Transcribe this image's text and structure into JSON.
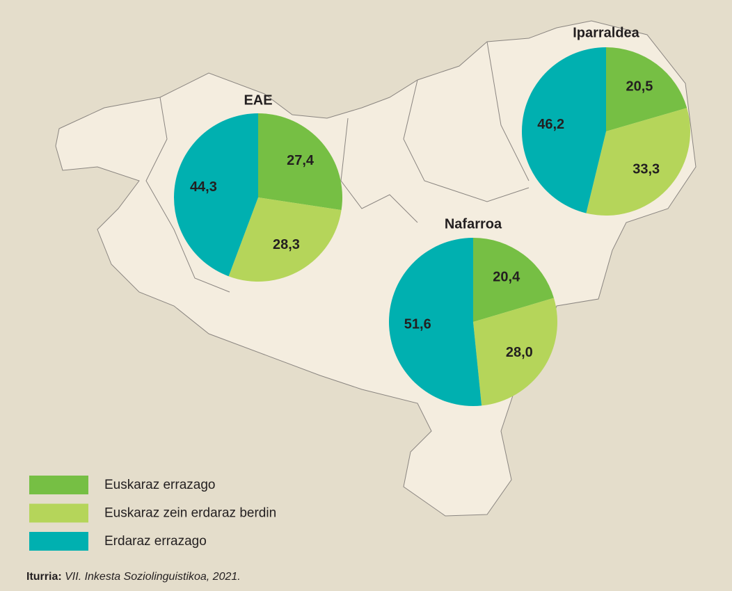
{
  "chart_data": [
    {
      "type": "pie",
      "title": "EAE",
      "categories": [
        "Euskaraz errazago",
        "Euskaraz zein erdaraz berdin",
        "Erdaraz errazago"
      ],
      "values": [
        27.4,
        28.3,
        44.3
      ],
      "value_labels": [
        "27,4",
        "28,3",
        "44,3"
      ],
      "colors": [
        "#76bf44",
        "#b5d55a",
        "#00b0b0"
      ]
    },
    {
      "type": "pie",
      "title": "Iparraldea",
      "categories": [
        "Euskaraz errazago",
        "Euskaraz zein erdaraz berdin",
        "Erdaraz errazago"
      ],
      "values": [
        20.5,
        33.3,
        46.2
      ],
      "value_labels": [
        "20,5",
        "33,3",
        "46,2"
      ],
      "colors": [
        "#76bf44",
        "#b5d55a",
        "#00b0b0"
      ]
    },
    {
      "type": "pie",
      "title": "Nafarroa",
      "categories": [
        "Euskaraz errazago",
        "Euskaraz zein erdaraz berdin",
        "Erdaraz errazago"
      ],
      "values": [
        20.4,
        28.0,
        51.6
      ],
      "value_labels": [
        "20,4",
        "28,0",
        "51,6"
      ],
      "colors": [
        "#76bf44",
        "#b5d55a",
        "#00b0b0"
      ]
    }
  ],
  "source": {
    "label": "Iturria:",
    "text": "VII. Inkesta Soziolinguistikoa, 2021."
  }
}
